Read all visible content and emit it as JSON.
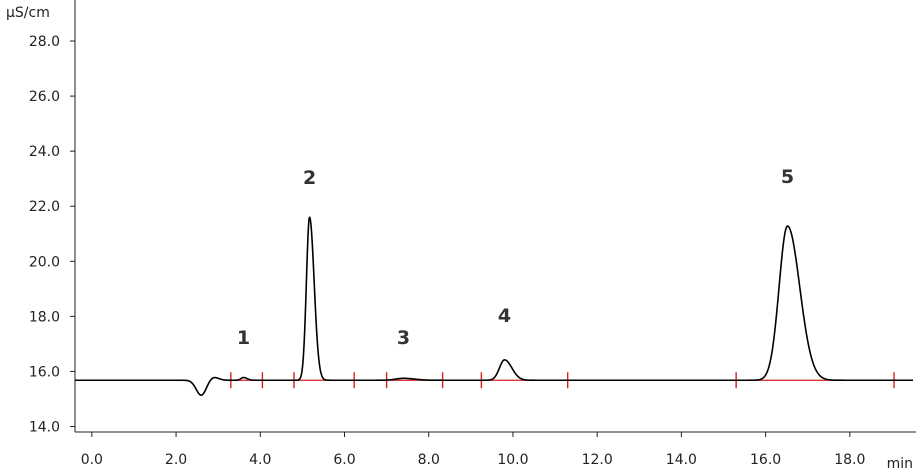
{
  "chart_data": {
    "type": "line",
    "ylabel": "µS/cm",
    "xlabel": "min",
    "xlim": [
      -0.4,
      19.5
    ],
    "ylim": [
      13.8,
      29.2
    ],
    "xticks": [
      0.0,
      2.0,
      4.0,
      6.0,
      8.0,
      10.0,
      12.0,
      14.0,
      16.0,
      18.0
    ],
    "xtick_labels": [
      "0.0",
      "2.0",
      "4.0",
      "6.0",
      "8.0",
      "10.0",
      "12.0",
      "14.0",
      "16.0",
      "18.0"
    ],
    "yticks": [
      14.0,
      16.0,
      18.0,
      20.0,
      22.0,
      24.0,
      26.0,
      28.0
    ],
    "ytick_labels": [
      "14.0",
      "16.0",
      "18.0",
      "20.0",
      "22.0",
      "24.0",
      "26.0",
      "28.0"
    ],
    "grid": false,
    "baseline": 15.68,
    "line_color": "#000000",
    "integration_color": "#d42020",
    "dip": {
      "center": 2.6,
      "depth": -0.55,
      "width": 0.12
    },
    "peaks": [
      {
        "label": "1",
        "retention_time": 3.6,
        "height": 15.78,
        "width": 0.06,
        "label_y": 17.0,
        "integration_start": 3.3,
        "integration_end": 4.05
      },
      {
        "label": "2",
        "retention_time": 5.17,
        "height": 21.6,
        "width": 0.075,
        "label_y": 22.8,
        "integration_start": 4.8,
        "integration_end": 6.23
      },
      {
        "label": "3",
        "retention_time": 7.4,
        "height": 15.75,
        "width": 0.18,
        "label_y": 17.0,
        "integration_start": 7.0,
        "integration_end": 8.33
      },
      {
        "label": "4",
        "retention_time": 9.8,
        "height": 16.42,
        "width": 0.12,
        "label_y": 17.8,
        "integration_start": 9.25,
        "integration_end": 11.3
      },
      {
        "label": "5",
        "retention_time": 16.52,
        "height": 21.28,
        "width": 0.2,
        "label_y": 22.85,
        "integration_start": 15.3,
        "integration_end": 19.05
      }
    ]
  }
}
